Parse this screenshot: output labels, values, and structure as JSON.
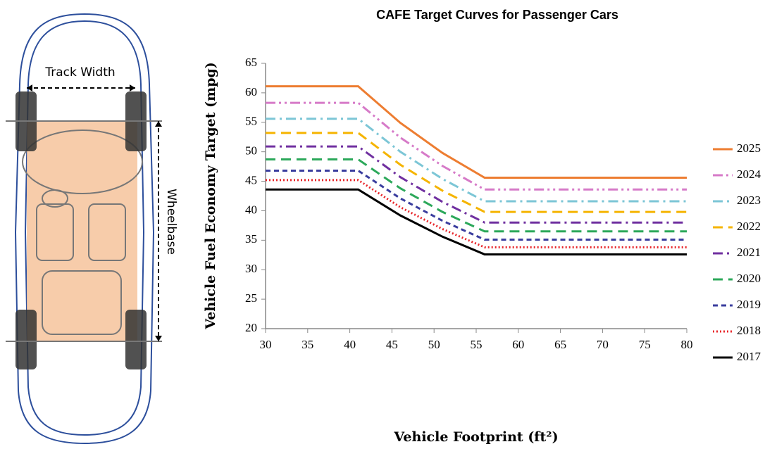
{
  "diagram": {
    "track_width": "Track Width",
    "wheelbase": "Wheelbase"
  },
  "chart_data": {
    "type": "line",
    "title": "CAFE Target Curves for Passenger Cars",
    "x_label": "Vehicle Footprint (ft²)",
    "y_label": "Vehicle Fuel Economy Target (mpg)",
    "x": [
      30,
      41,
      46,
      51,
      56,
      80
    ],
    "xlim": [
      30,
      80
    ],
    "xticks": [
      30,
      35,
      40,
      45,
      50,
      55,
      60,
      65,
      70,
      75,
      80
    ],
    "ylim": [
      20,
      65
    ],
    "yticks": [
      20,
      25,
      30,
      35,
      40,
      45,
      50,
      55,
      60,
      65
    ],
    "grid": false,
    "legend": "right",
    "series": [
      {
        "name": "2025",
        "color": "#ed7d31",
        "dash": "solid",
        "values": [
          61.1,
          61.1,
          54.9,
          49.8,
          45.6,
          45.6
        ]
      },
      {
        "name": "2024",
        "color": "#d67ac8",
        "dash": "dash-dot-dot",
        "values": [
          58.3,
          58.3,
          52.4,
          47.6,
          43.6,
          43.6
        ]
      },
      {
        "name": "2023",
        "color": "#7cc6d6",
        "dash": "dash-dot",
        "values": [
          55.6,
          55.6,
          50.0,
          45.4,
          41.6,
          41.6
        ]
      },
      {
        "name": "2022",
        "color": "#f5b400",
        "dash": "dash",
        "values": [
          53.2,
          53.2,
          47.8,
          43.4,
          39.8,
          39.8
        ]
      },
      {
        "name": "2021",
        "color": "#7030a0",
        "dash": "dash-dot",
        "values": [
          50.9,
          50.9,
          45.7,
          41.5,
          38.0,
          38.0
        ]
      },
      {
        "name": "2020",
        "color": "#2ca85a",
        "dash": "dash",
        "values": [
          48.7,
          48.7,
          43.8,
          39.8,
          36.5,
          36.5
        ]
      },
      {
        "name": "2019",
        "color": "#3a3d9e",
        "dash": "short-dash",
        "values": [
          46.8,
          46.8,
          42.1,
          38.3,
          35.1,
          35.1
        ]
      },
      {
        "name": "2018",
        "color": "#e8262a",
        "dash": "dot",
        "values": [
          45.2,
          45.2,
          40.6,
          36.9,
          33.8,
          33.8
        ]
      },
      {
        "name": "2017",
        "color": "#000000",
        "dash": "solid",
        "values": [
          43.6,
          43.6,
          39.2,
          35.6,
          32.6,
          32.6
        ]
      }
    ]
  }
}
